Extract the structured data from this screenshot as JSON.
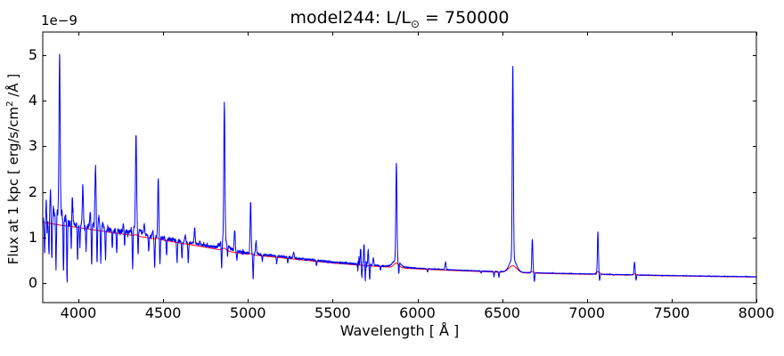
{
  "figure": {
    "title": {
      "prefix": "model244: L/L",
      "sub": "⊙",
      "suffix": " = 750000"
    },
    "offset_text": "1e−9",
    "xlabel": {
      "prefix": "Wavelength [ Å ]"
    },
    "ylabel": {
      "prefix": "Flux at 1 kpc [ erg/s/cm",
      "sup": "2",
      "suffix": " /Å ]"
    },
    "x_ticks": [
      4000,
      4500,
      5000,
      5500,
      6000,
      6500,
      7000,
      7500,
      8000
    ],
    "y_ticks": [
      0,
      1,
      2,
      3,
      4,
      5
    ],
    "colors": {
      "spectrum": "#0000ff",
      "model": "#ff0000",
      "axes": "#000000",
      "background": "#ffffff"
    }
  },
  "chart_data": {
    "type": "line",
    "title": "model244: L/L⊙ = 750000",
    "xlabel": "Wavelength [ Å ]",
    "ylabel": "Flux at 1 kpc [ erg/s/cm² /Å ]",
    "y_unit_scale": "1e-9",
    "xlim": [
      3790,
      8000
    ],
    "ylim": [
      -0.43,
      5.51
    ],
    "grid": false,
    "legend": "none",
    "series": [
      {
        "name": "observed-spectrum",
        "color": "#0000ff",
        "style": "solid"
      },
      {
        "name": "model-continuum-fit",
        "color": "#ff0000",
        "style": "solid"
      }
    ],
    "continuum_anchors": [
      [
        3790,
        1.4
      ],
      [
        3900,
        1.33
      ],
      [
        4000,
        1.28
      ],
      [
        4100,
        1.22
      ],
      [
        4200,
        1.16
      ],
      [
        4300,
        1.11
      ],
      [
        4400,
        1.05
      ],
      [
        4500,
        0.99
      ],
      [
        4600,
        0.92
      ],
      [
        4700,
        0.86
      ],
      [
        4800,
        0.79
      ],
      [
        4900,
        0.72
      ],
      [
        5000,
        0.66
      ],
      [
        5100,
        0.62
      ],
      [
        5200,
        0.58
      ],
      [
        5300,
        0.54
      ],
      [
        5400,
        0.5
      ],
      [
        5500,
        0.46
      ],
      [
        5600,
        0.43
      ],
      [
        5700,
        0.4
      ],
      [
        5800,
        0.375
      ],
      [
        5900,
        0.35
      ],
      [
        6000,
        0.325
      ],
      [
        6200,
        0.29
      ],
      [
        6400,
        0.26
      ],
      [
        6600,
        0.235
      ],
      [
        6800,
        0.215
      ],
      [
        7000,
        0.2
      ],
      [
        7200,
        0.185
      ],
      [
        7400,
        0.17
      ],
      [
        7600,
        0.158
      ],
      [
        7800,
        0.147
      ],
      [
        8000,
        0.137
      ]
    ],
    "emission_lines": [
      [
        3812,
        1.92
      ],
      [
        3835,
        2.05
      ],
      [
        3853,
        1.6
      ],
      [
        3889,
        5.05
      ],
      [
        3927,
        1.5
      ],
      [
        3964,
        1.9
      ],
      [
        4026,
        2.14
      ],
      [
        4070,
        1.55
      ],
      [
        4101,
        2.58
      ],
      [
        4121,
        1.4
      ],
      [
        4144,
        1.32
      ],
      [
        4267,
        1.3
      ],
      [
        4340,
        3.28
      ],
      [
        4388,
        1.28
      ],
      [
        4438,
        1.15
      ],
      [
        4471,
        2.26
      ],
      [
        4630,
        1.05
      ],
      [
        4686,
        1.22
      ],
      [
        4713,
        1.08
      ],
      [
        4861,
        3.95
      ],
      [
        4922,
        1.17
      ],
      [
        5016,
        1.78
      ],
      [
        5048,
        0.9
      ],
      [
        5270,
        0.68
      ],
      [
        5665,
        0.72
      ],
      [
        5685,
        0.82
      ],
      [
        5710,
        0.68
      ],
      [
        5740,
        0.55
      ],
      [
        5876,
        2.64
      ],
      [
        6166,
        0.46
      ],
      [
        6563,
        4.76
      ],
      [
        6678,
        0.96
      ],
      [
        7065,
        1.13
      ],
      [
        7281,
        0.46
      ]
    ],
    "absorption_lines": [
      [
        3801,
        0.68
      ],
      [
        3815,
        0.85
      ],
      [
        3826,
        0.6
      ],
      [
        3843,
        0.55
      ],
      [
        3868,
        0.18
      ],
      [
        3912,
        0.1
      ],
      [
        3933,
        0.07
      ],
      [
        3958,
        0.75
      ],
      [
        3995,
        0.52
      ],
      [
        4009,
        0.8
      ],
      [
        4045,
        0.72
      ],
      [
        4078,
        0.35
      ],
      [
        4110,
        0.3
      ],
      [
        4132,
        0.45
      ],
      [
        4160,
        0.55
      ],
      [
        4200,
        0.8
      ],
      [
        4226,
        0.65
      ],
      [
        4272,
        0.8
      ],
      [
        4320,
        0.22
      ],
      [
        4352,
        0.55
      ],
      [
        4415,
        0.7
      ],
      [
        4450,
        0.32
      ],
      [
        4481,
        0.42
      ],
      [
        4520,
        0.6
      ],
      [
        4582,
        0.45
      ],
      [
        4611,
        0.52
      ],
      [
        4648,
        0.45
      ],
      [
        4712,
        0.62
      ],
      [
        4845,
        0.18
      ],
      [
        4880,
        0.45
      ],
      [
        4935,
        0.5
      ],
      [
        5031,
        0.1
      ],
      [
        5085,
        0.48
      ],
      [
        5170,
        0.42
      ],
      [
        5235,
        0.45
      ],
      [
        5405,
        0.38
      ],
      [
        5672,
        0.1
      ],
      [
        5692,
        0.08
      ],
      [
        5718,
        0.12
      ],
      [
        5782,
        0.28
      ],
      [
        5890,
        0.09
      ],
      [
        6060,
        0.24
      ],
      [
        6376,
        0.22
      ],
      [
        6452,
        0.14
      ],
      [
        6481,
        0.13
      ],
      [
        6690,
        0.03
      ],
      [
        7075,
        0.05
      ],
      [
        7160,
        0.17
      ],
      [
        7290,
        0.06
      ]
    ],
    "noise_bands": [
      [
        3790,
        3960,
        0.085
      ],
      [
        3960,
        4300,
        0.055
      ],
      [
        4300,
        4600,
        0.04
      ],
      [
        4600,
        5050,
        0.028
      ],
      [
        5050,
        5400,
        0.016
      ],
      [
        5400,
        5645,
        0.01
      ],
      [
        5645,
        5725,
        0.075
      ],
      [
        5725,
        6000,
        0.007
      ],
      [
        6000,
        6600,
        0.0045
      ],
      [
        6600,
        8001,
        0.0035
      ]
    ],
    "model_fit": {
      "continuum_scale": 0.952,
      "broad_bumps": [
        [
          4340,
          0.025,
          10
        ],
        [
          4471,
          0.02,
          10
        ],
        [
          4861,
          0.05,
          12
        ],
        [
          5016,
          0.025,
          10
        ],
        [
          5876,
          0.1,
          15
        ],
        [
          6563,
          0.15,
          24
        ],
        [
          6678,
          0.035,
          10
        ],
        [
          7065,
          0.06,
          13
        ],
        [
          7281,
          0.03,
          10
        ]
      ]
    }
  }
}
